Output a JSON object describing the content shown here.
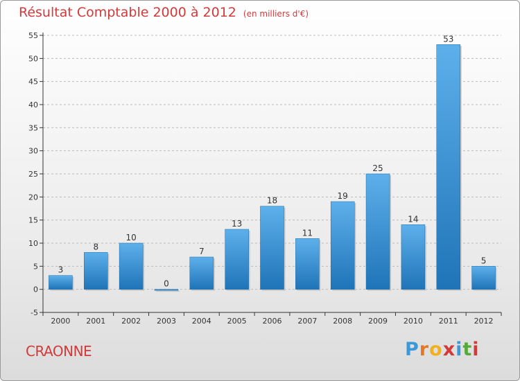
{
  "title": "Résultat Comptable 2000 à 2012",
  "subtitle": "(en milliers d'€)",
  "commune": "CRAONNE",
  "logo": {
    "text": "Proxiti",
    "letters": [
      "P",
      "r",
      "o",
      "x",
      "i",
      "t",
      "i"
    ],
    "colors": [
      "#3a9ad9",
      "#e87722",
      "#f2b01e",
      "#d23a3a",
      "#3a9ad9",
      "#59a83b",
      "#d23a3a"
    ]
  },
  "colors": {
    "bar_top": "#5db0ea",
    "bar_bottom": "#1f74b8",
    "axis": "#333333",
    "grid": "#bbbbbb",
    "title": "#d23a3a"
  },
  "chart_data": {
    "type": "bar",
    "title": "Résultat Comptable 2000 à 2012",
    "subtitle": "(en milliers d'€)",
    "xlabel": "",
    "ylabel": "",
    "categories": [
      "2000",
      "2001",
      "2002",
      "2003",
      "2004",
      "2005",
      "2006",
      "2007",
      "2008",
      "2009",
      "2010",
      "2011",
      "2012"
    ],
    "values": [
      3,
      8,
      10,
      0,
      7,
      13,
      18,
      11,
      19,
      25,
      14,
      53,
      5
    ],
    "ylim": [
      -5,
      55
    ],
    "yticks": [
      -5,
      0,
      5,
      10,
      15,
      20,
      25,
      30,
      35,
      40,
      45,
      50,
      55
    ],
    "grid": true,
    "legend": "none"
  }
}
